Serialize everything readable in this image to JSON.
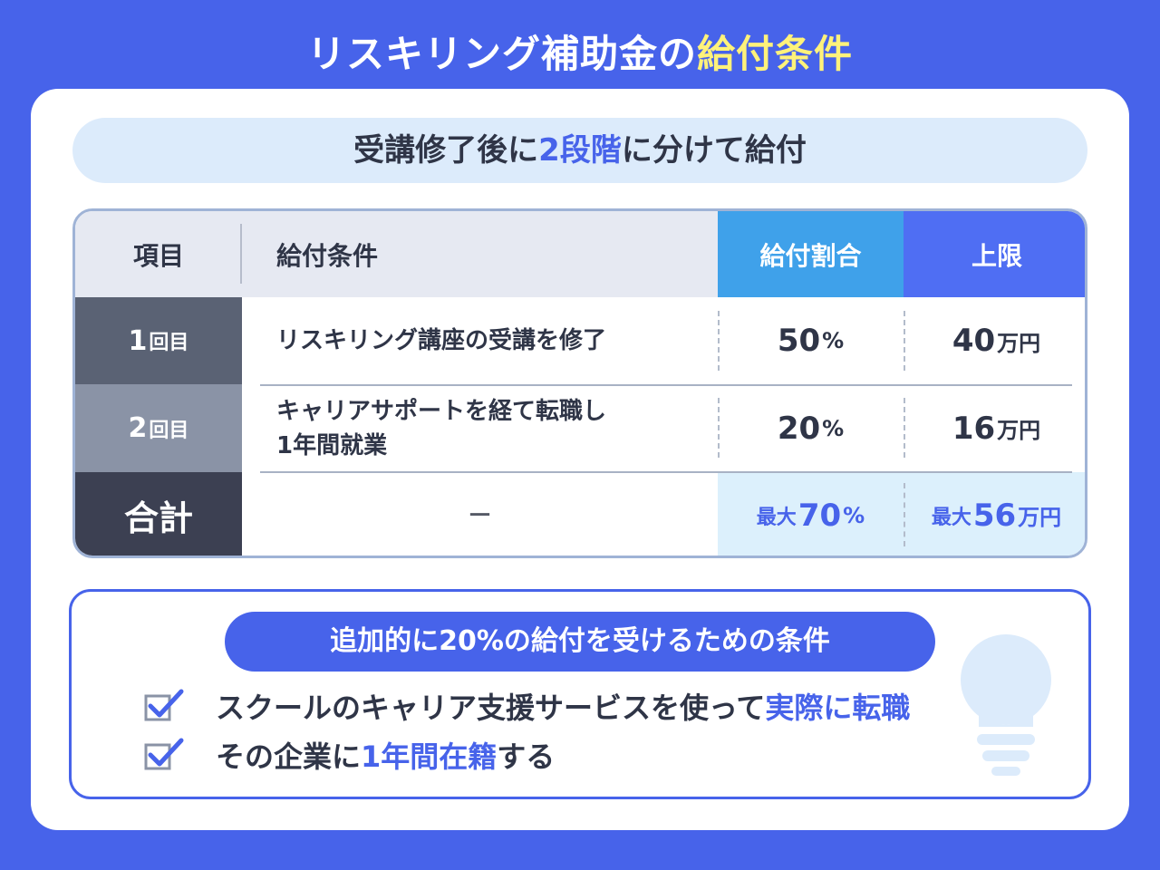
{
  "title": {
    "main": "リスキリング補助金の",
    "highlight": "給付条件"
  },
  "subtitle": {
    "pre": "受講修了後に",
    "highlight": "2段階",
    "post": "に分けて給付"
  },
  "table": {
    "headers": {
      "item": "項目",
      "condition": "給付条件",
      "rate": "給付割合",
      "cap": "上限"
    },
    "rows": [
      {
        "num": "1",
        "suffix": "回目",
        "condition": "リスキリング講座の受講を修了",
        "rate_value": "50",
        "rate_unit": "%",
        "cap_value": "40",
        "cap_unit": "万円"
      },
      {
        "num": "2",
        "suffix": "回目",
        "condition_line1": "キャリアサポートを経て転職し",
        "condition_line2": "1年間就業",
        "rate_value": "20",
        "rate_unit": "%",
        "cap_value": "16",
        "cap_unit": "万円"
      }
    ],
    "total": {
      "label": "合計",
      "condition": "－",
      "rate_prefix": "最大",
      "rate_value": "70",
      "rate_unit": "%",
      "cap_prefix": "最大",
      "cap_value": "56",
      "cap_unit": "万円"
    }
  },
  "additional": {
    "heading": "追加的に20%の給付を受けるための条件",
    "items": [
      {
        "pre": "スクールのキャリア支援サービスを使って",
        "highlight": "実際に転職",
        "post": ""
      },
      {
        "pre": "その企業に",
        "highlight": "1年間在籍",
        "post": "する"
      }
    ]
  },
  "colors": {
    "background": "#4763ea",
    "accent_yellow": "#fff27a",
    "rate_header": "#3fa1ea",
    "cap_header": "#4f6ef3"
  },
  "icons": [
    "checkbox-check-icon",
    "lightbulb-icon"
  ]
}
